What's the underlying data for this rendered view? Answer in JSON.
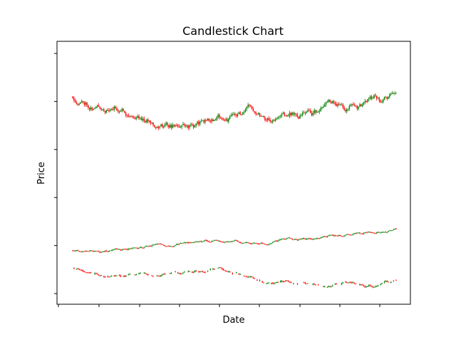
{
  "chart_data": {
    "type": "candlestick",
    "title": "Candlestick Chart",
    "xlabel": "Date",
    "ylabel": "Price",
    "tick_labels_shown": false,
    "grid": false,
    "legend": "none",
    "colors": {
      "up": "#008000",
      "down": "#ff0000",
      "axes": "#000000"
    },
    "n_x_ticks": 9,
    "n_y_ticks": 6,
    "ylim": [
      0,
      1
    ],
    "series": [
      {
        "name": "",
        "start": 0.82,
        "end": 0.97,
        "volatility": 0.012,
        "seed": 11
      },
      {
        "name": "",
        "start": 0.18,
        "end": 0.26,
        "volatility": 0.004,
        "seed": 23
      },
      {
        "name": "",
        "start": 0.11,
        "end": 0.12,
        "volatility": 0.005,
        "seed": 37,
        "gappy": true
      }
    ],
    "n_days": 250
  }
}
